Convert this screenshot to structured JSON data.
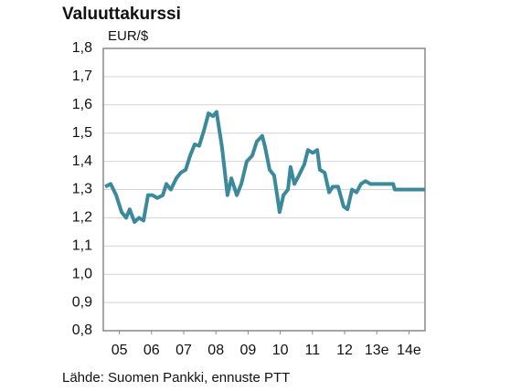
{
  "chart_data": {
    "type": "line",
    "title": "Valuuttakurssi",
    "y_label": "EUR/$",
    "source": "Lähde: Suomen Pankki, ennuste PTT",
    "x": [
      2005.06,
      2005.23,
      2005.4,
      2005.57,
      2005.71,
      2005.82,
      2005.97,
      2006.11,
      2006.25,
      2006.39,
      2006.53,
      2006.68,
      2006.85,
      2006.96,
      2007.1,
      2007.27,
      2007.41,
      2007.56,
      2007.7,
      2007.84,
      2007.98,
      2008.13,
      2008.27,
      2008.41,
      2008.52,
      2008.69,
      2008.86,
      2008.98,
      2009.15,
      2009.29,
      2009.46,
      2009.63,
      2009.77,
      2009.94,
      2010.03,
      2010.17,
      2010.31,
      2010.43,
      2010.48,
      2010.6,
      2010.74,
      2010.82,
      2010.94,
      2011.08,
      2011.25,
      2011.36,
      2011.51,
      2011.65,
      2011.73,
      2011.88,
      2012.02,
      2012.13,
      2012.3,
      2012.47,
      2012.59,
      2012.73,
      2012.87,
      2013.01,
      2013.15,
      2013.3,
      2014.01,
      2014.06,
      2015.0
    ],
    "series": [
      {
        "name": "EUR/$",
        "color": "#3b8a9c",
        "values": [
          1.31,
          1.32,
          1.28,
          1.22,
          1.2,
          1.23,
          1.185,
          1.2,
          1.19,
          1.28,
          1.28,
          1.27,
          1.28,
          1.32,
          1.3,
          1.34,
          1.36,
          1.37,
          1.42,
          1.46,
          1.455,
          1.51,
          1.57,
          1.56,
          1.575,
          1.45,
          1.28,
          1.34,
          1.28,
          1.32,
          1.4,
          1.42,
          1.47,
          1.49,
          1.45,
          1.37,
          1.35,
          1.26,
          1.22,
          1.28,
          1.3,
          1.38,
          1.32,
          1.35,
          1.39,
          1.44,
          1.43,
          1.44,
          1.37,
          1.36,
          1.29,
          1.31,
          1.31,
          1.24,
          1.23,
          1.3,
          1.29,
          1.32,
          1.33,
          1.32,
          1.32,
          1.3,
          1.3
        ]
      }
    ],
    "xlim": [
      2005,
      2015
    ],
    "xticks": [
      {
        "value": 2005.5,
        "label": "05"
      },
      {
        "value": 2006.5,
        "label": "06"
      },
      {
        "value": 2007.5,
        "label": "07"
      },
      {
        "value": 2008.5,
        "label": "08"
      },
      {
        "value": 2009.5,
        "label": "09"
      },
      {
        "value": 2010.5,
        "label": "10"
      },
      {
        "value": 2011.5,
        "label": "11"
      },
      {
        "value": 2012.5,
        "label": "12"
      },
      {
        "value": 2013.5,
        "label": "13e"
      },
      {
        "value": 2014.5,
        "label": "14e"
      }
    ],
    "ylim": [
      0.8,
      1.8
    ],
    "yticks": [
      {
        "value": 0.8,
        "label": "0,8"
      },
      {
        "value": 0.9,
        "label": "0,9"
      },
      {
        "value": 1.0,
        "label": "1,0"
      },
      {
        "value": 1.1,
        "label": "1,1"
      },
      {
        "value": 1.2,
        "label": "1,2"
      },
      {
        "value": 1.3,
        "label": "1,3"
      },
      {
        "value": 1.4,
        "label": "1,4"
      },
      {
        "value": 1.5,
        "label": "1,5"
      },
      {
        "value": 1.6,
        "label": "1,6"
      },
      {
        "value": 1.7,
        "label": "1,7"
      },
      {
        "value": 1.8,
        "label": "1,8"
      }
    ],
    "grid": true
  }
}
